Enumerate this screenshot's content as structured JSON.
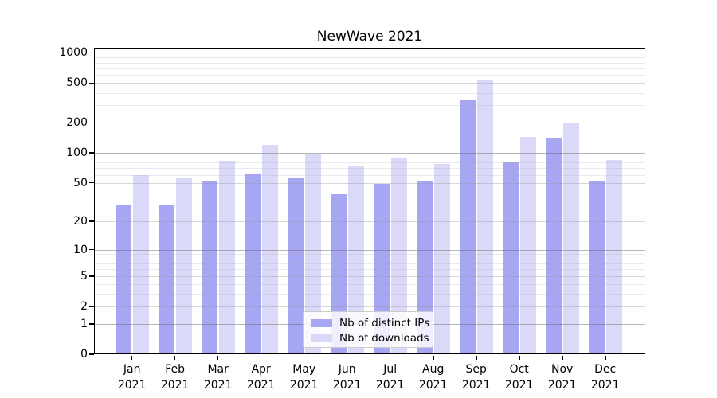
{
  "chart_data": {
    "type": "bar",
    "title": "NewWave 2021",
    "months": [
      "Jan",
      "Feb",
      "Mar",
      "Apr",
      "May",
      "Jun",
      "Jul",
      "Aug",
      "Sep",
      "Oct",
      "Nov",
      "Dec"
    ],
    "year": "2021",
    "series": [
      {
        "name": "Nb of distinct IPs",
        "color": "#a6a6f2",
        "values": [
          30,
          30,
          52,
          62,
          56,
          38,
          49,
          51,
          335,
          81,
          143,
          52
        ]
      },
      {
        "name": "Nb of downloads",
        "color": "#dadaf8",
        "values": [
          60,
          55,
          84,
          121,
          99,
          75,
          88,
          78,
          530,
          145,
          203,
          85
        ]
      }
    ],
    "y_ticks": [
      0,
      1,
      2,
      5,
      10,
      20,
      50,
      100,
      200,
      500,
      1000
    ],
    "y_tick_labels": [
      "0",
      "1",
      "2",
      "5",
      "10",
      "20",
      "50",
      "100",
      "200",
      "500",
      "1000"
    ],
    "scale": "log1p",
    "ylim": [
      0,
      1100
    ],
    "xlabel": "",
    "ylabel": "",
    "grid": true,
    "legend_position": "lower center"
  }
}
